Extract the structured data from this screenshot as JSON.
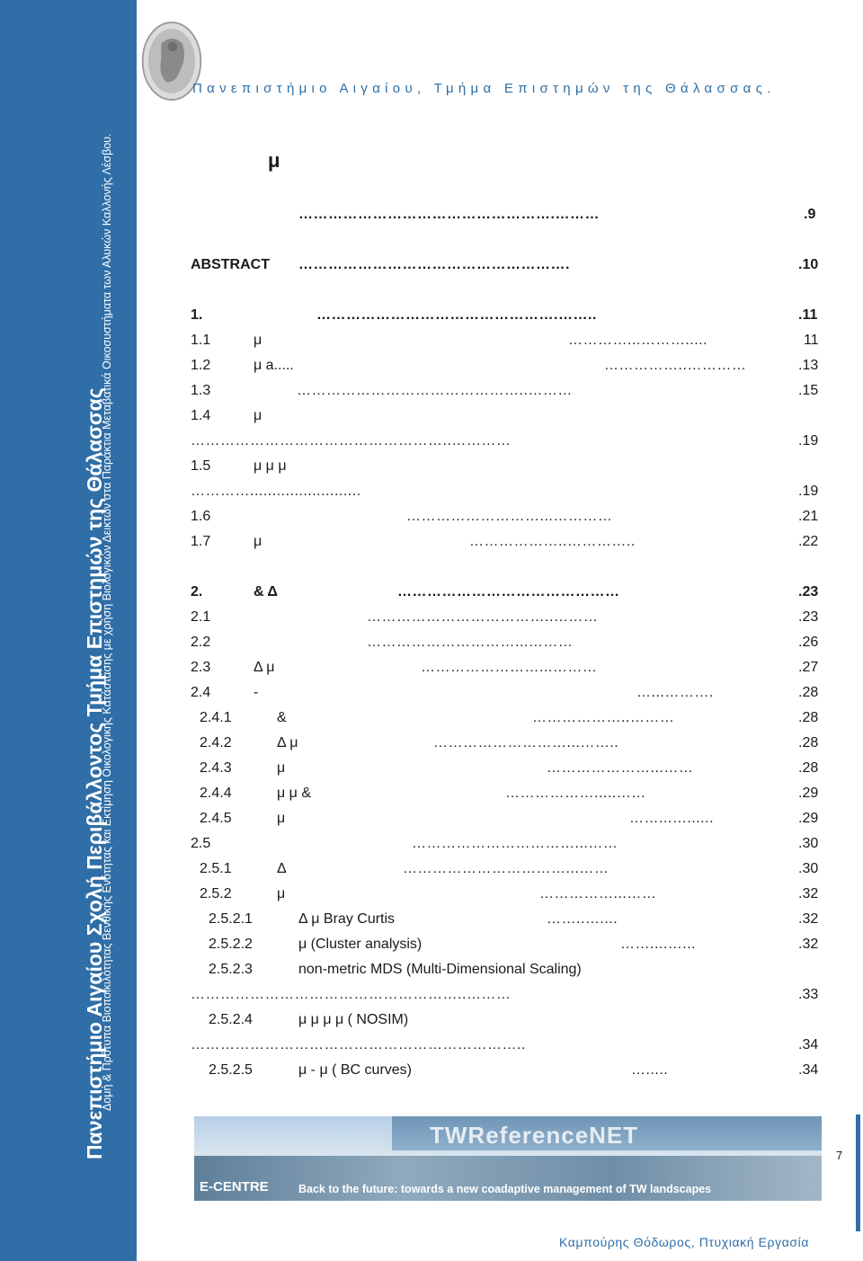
{
  "sidebar": {
    "title": "Πανεπιστήμιο Αιγαίου Σχολή Περιβάλλοντος Τμήμα Επιστημών της Θάλασσας",
    "subtitle_line1": "Δομή & Πρότυπα Βιοποικιλότητας Βενθικής Ενότητας και Εκτίμηση Οικολογικής Κατάστασης με χρήση Βιολογικών Δεικτών στα Παράκτια Μεταβατικά Οικοσυστήματα των Αλυκών Καλλονής Λέσβου.",
    "subtitle_line2": ""
  },
  "header": "Πανεπιστήμιο Αιγαίου, Τμήμα Επιστημών της Θάλασσας.",
  "toc_title": "μ",
  "toc": [
    {
      "num": "",
      "label": "",
      "dots": "…………………………………………….………",
      "page": ".9",
      "bold": true
    },
    {
      "num": "ABSTRACT",
      "label": "",
      "dots": "……………………………………………….",
      "page": ".10",
      "bold": true
    },
    {
      "num": "1.",
      "label": "",
      "dots": "………………………………………….……..",
      "page": ".11",
      "bold": true
    },
    {
      "num": "1.1",
      "label": "μ",
      "dots": "…………...……….....",
      "page": "11",
      "bold": false
    },
    {
      "num": "1.2",
      "label": "μ a.....",
      "dots": "……………..…………",
      "page": ".13",
      "bold": false
    },
    {
      "num": "1.3",
      "label": "",
      "dots": "………………………………………..………",
      "page": ".15",
      "bold": false
    },
    {
      "num": "1.4",
      "label": "μ",
      "dots": "",
      "page": "",
      "bold": false
    },
    {
      "num": "",
      "label": "",
      "dots": "……………………………………………..…………",
      "page": ".19",
      "bold": false
    },
    {
      "num": "1.5",
      "label": "μ                                          μ           μ",
      "dots": "",
      "page": "",
      "bold": false
    },
    {
      "num": "",
      "label": "",
      "dots": "………….........................",
      "page": ".19",
      "bold": false
    },
    {
      "num": "1.6",
      "label": "",
      "dots": "………………………...…………",
      "page": ".21",
      "bold": false
    },
    {
      "num": "1.7",
      "label": "μ",
      "dots": "………………..…………..",
      "page": ".22",
      "bold": false
    },
    {
      "num": "2.",
      "label": "&          Δ",
      "dots": "………………………………………",
      "page": ".23",
      "bold": true
    },
    {
      "num": "2.1",
      "label": "",
      "dots": "………………………………..………",
      "page": ".23",
      "bold": false
    },
    {
      "num": "2.2",
      "label": "",
      "dots": "…………………………...………",
      "page": ".26",
      "bold": false
    },
    {
      "num": "2.3",
      "label": "Δ   μ",
      "dots": "……………………...………",
      "page": ".27",
      "bold": false
    },
    {
      "num": "2.4",
      "label": "-",
      "dots": "…...……….",
      "page": ".28",
      "bold": false
    },
    {
      "num": "2.4.1",
      "label": "&",
      "dots": "………………..………",
      "page": ".28",
      "bold": false
    },
    {
      "num": "2.4.2",
      "label": "Δ          μ",
      "dots": "………………………...……..",
      "page": ".28",
      "bold": false
    },
    {
      "num": "2.4.3",
      "label": "μ",
      "dots": "…………………...……",
      "page": ".28",
      "bold": false
    },
    {
      "num": "2.4.4",
      "label": "μ          μ       &",
      "dots": "……………….....……",
      "page": ".29",
      "bold": false
    },
    {
      "num": "2.4.5",
      "label": "μ",
      "dots": "……...…......",
      "page": ".29",
      "bold": false
    },
    {
      "num": "2.5",
      "label": "",
      "dots": "……………………………...……",
      "page": ".30",
      "bold": false
    },
    {
      "num": "2.5.1",
      "label": "Δ",
      "dots": "……………………………...……",
      "page": ".30",
      "bold": false
    },
    {
      "num": "2.5.2",
      "label": "μ",
      "dots": "……………...……",
      "page": ".32",
      "bold": false
    },
    {
      "num": "2.5.2.1",
      "label": "Δ           μ          Bray Curtis",
      "dots": "……..…....",
      "page": ".32",
      "bold": false
    },
    {
      "num": "2.5.2.2",
      "label": "μ           (Cluster analysis)",
      "dots": "……....…...",
      "page": ".32",
      "bold": false
    },
    {
      "num": "2.5.2.3",
      "label": "non-metric MDS (Multi-Dimensional Scaling)",
      "dots": "",
      "page": "",
      "bold": false
    },
    {
      "num": "",
      "label": "",
      "dots": "………………………………………………..………",
      "page": ".33",
      "bold": false
    },
    {
      "num": "2.5.2.4",
      "label": "μ           μ                 μ              μ      (   NOSIM)",
      "dots": "",
      "page": "",
      "bold": false
    },
    {
      "num": "",
      "label": "",
      "dots": "…………………………………………………………..",
      "page": ".34",
      "bold": false
    },
    {
      "num": "2.5.2.5",
      "label": "μ                                          -     μ     (   BC curves)",
      "dots": "….....",
      "page": ".34",
      "bold": false
    }
  ],
  "banner": {
    "brand": "TWReferenceNET",
    "ecentre": "E-CENTRE",
    "slogan": "Back to the future: towards a new coadaptive management of TW landscapes"
  },
  "page_number": "7",
  "footer": "Καμπούρης Θόδωρος, Πτυχιακή Εργασία"
}
